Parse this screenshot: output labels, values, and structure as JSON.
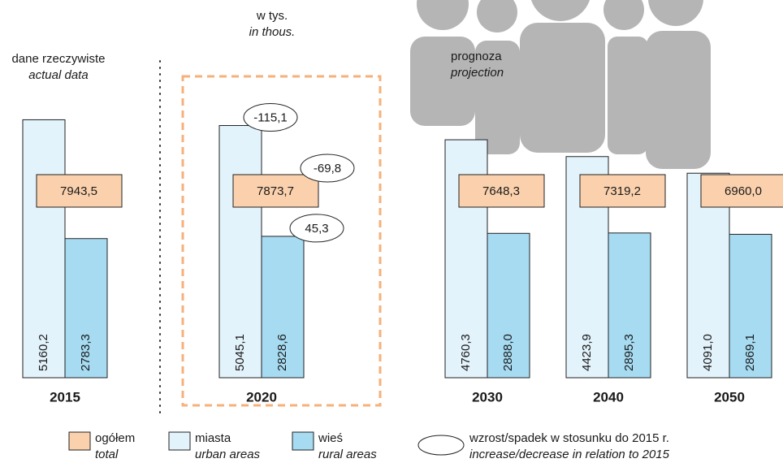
{
  "chart_data": {
    "type": "bar",
    "unit": "w tys.",
    "unit_en": "in thous.",
    "actual_label": "dane rzeczywiste",
    "actual_label_en": "actual data",
    "projection_label": "prognoza",
    "projection_label_en": "projection",
    "categories": [
      "2015",
      "2020",
      "2030",
      "2040",
      "2050"
    ],
    "series": [
      {
        "name": "miasta",
        "name_en": "urban areas",
        "color": "#e3f3fb",
        "values": [
          5160.2,
          5045.1,
          4760.3,
          4423.9,
          4091.0
        ],
        "value_labels": [
          "5160,2",
          "5045,1",
          "4760,3",
          "4423,9",
          "4091,0"
        ]
      },
      {
        "name": "wieś",
        "name_en": "rural areas",
        "color": "#a6dbf2",
        "values": [
          2783.3,
          2828.6,
          2888.0,
          2895.3,
          2869.1
        ],
        "value_labels": [
          "2783,3",
          "2828,6",
          "2888,0",
          "2895,3",
          "2869,1"
        ]
      }
    ],
    "total": {
      "name": "ogółem",
      "name_en": "total",
      "color": "#fbd1ad",
      "values": [
        7943.5,
        7873.7,
        7648.3,
        7319.2,
        6960.0
      ],
      "value_labels": [
        "7943,5",
        "7873,7",
        "7648,3",
        "7319,2",
        "6960,0"
      ]
    },
    "change": {
      "name": "wzrost/spadek w stosunku do 2015 r.",
      "name_en": "increase/decrease in relation to 2015",
      "category": "2020",
      "urban": -115.1,
      "urban_label": "-115,1",
      "total": -69.8,
      "total_label": "-69,8",
      "rural": 45.3,
      "rural_label": "45,3"
    }
  }
}
